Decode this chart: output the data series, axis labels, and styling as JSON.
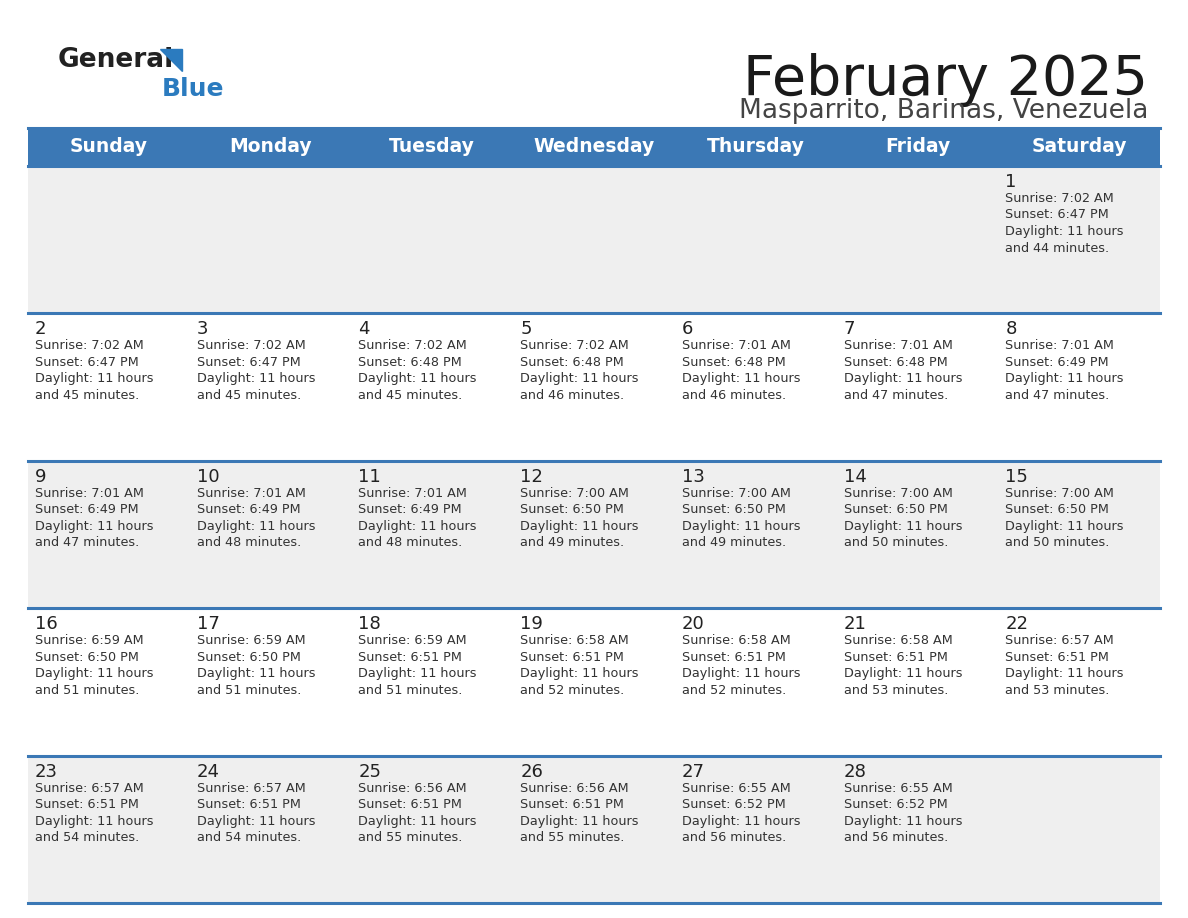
{
  "title": "February 2025",
  "subtitle": "Masparrito, Barinas, Venezuela",
  "days_of_week": [
    "Sunday",
    "Monday",
    "Tuesday",
    "Wednesday",
    "Thursday",
    "Friday",
    "Saturday"
  ],
  "header_bg": "#3b78b5",
  "header_text_color": "#ffffff",
  "row_bg_gray": "#efefef",
  "row_bg_white": "#ffffff",
  "separator_color": "#3b78b5",
  "text_color": "#333333",
  "day_number_color": "#333333",
  "calendar_data": [
    [
      null,
      null,
      null,
      null,
      null,
      null,
      {
        "day": 1,
        "sunrise": "7:02 AM",
        "sunset": "6:47 PM",
        "daylight_hours": 11,
        "daylight_minutes": 44
      }
    ],
    [
      {
        "day": 2,
        "sunrise": "7:02 AM",
        "sunset": "6:47 PM",
        "daylight_hours": 11,
        "daylight_minutes": 45
      },
      {
        "day": 3,
        "sunrise": "7:02 AM",
        "sunset": "6:47 PM",
        "daylight_hours": 11,
        "daylight_minutes": 45
      },
      {
        "day": 4,
        "sunrise": "7:02 AM",
        "sunset": "6:48 PM",
        "daylight_hours": 11,
        "daylight_minutes": 45
      },
      {
        "day": 5,
        "sunrise": "7:02 AM",
        "sunset": "6:48 PM",
        "daylight_hours": 11,
        "daylight_minutes": 46
      },
      {
        "day": 6,
        "sunrise": "7:01 AM",
        "sunset": "6:48 PM",
        "daylight_hours": 11,
        "daylight_minutes": 46
      },
      {
        "day": 7,
        "sunrise": "7:01 AM",
        "sunset": "6:48 PM",
        "daylight_hours": 11,
        "daylight_minutes": 47
      },
      {
        "day": 8,
        "sunrise": "7:01 AM",
        "sunset": "6:49 PM",
        "daylight_hours": 11,
        "daylight_minutes": 47
      }
    ],
    [
      {
        "day": 9,
        "sunrise": "7:01 AM",
        "sunset": "6:49 PM",
        "daylight_hours": 11,
        "daylight_minutes": 47
      },
      {
        "day": 10,
        "sunrise": "7:01 AM",
        "sunset": "6:49 PM",
        "daylight_hours": 11,
        "daylight_minutes": 48
      },
      {
        "day": 11,
        "sunrise": "7:01 AM",
        "sunset": "6:49 PM",
        "daylight_hours": 11,
        "daylight_minutes": 48
      },
      {
        "day": 12,
        "sunrise": "7:00 AM",
        "sunset": "6:50 PM",
        "daylight_hours": 11,
        "daylight_minutes": 49
      },
      {
        "day": 13,
        "sunrise": "7:00 AM",
        "sunset": "6:50 PM",
        "daylight_hours": 11,
        "daylight_minutes": 49
      },
      {
        "day": 14,
        "sunrise": "7:00 AM",
        "sunset": "6:50 PM",
        "daylight_hours": 11,
        "daylight_minutes": 50
      },
      {
        "day": 15,
        "sunrise": "7:00 AM",
        "sunset": "6:50 PM",
        "daylight_hours": 11,
        "daylight_minutes": 50
      }
    ],
    [
      {
        "day": 16,
        "sunrise": "6:59 AM",
        "sunset": "6:50 PM",
        "daylight_hours": 11,
        "daylight_minutes": 51
      },
      {
        "day": 17,
        "sunrise": "6:59 AM",
        "sunset": "6:50 PM",
        "daylight_hours": 11,
        "daylight_minutes": 51
      },
      {
        "day": 18,
        "sunrise": "6:59 AM",
        "sunset": "6:51 PM",
        "daylight_hours": 11,
        "daylight_minutes": 51
      },
      {
        "day": 19,
        "sunrise": "6:58 AM",
        "sunset": "6:51 PM",
        "daylight_hours": 11,
        "daylight_minutes": 52
      },
      {
        "day": 20,
        "sunrise": "6:58 AM",
        "sunset": "6:51 PM",
        "daylight_hours": 11,
        "daylight_minutes": 52
      },
      {
        "day": 21,
        "sunrise": "6:58 AM",
        "sunset": "6:51 PM",
        "daylight_hours": 11,
        "daylight_minutes": 53
      },
      {
        "day": 22,
        "sunrise": "6:57 AM",
        "sunset": "6:51 PM",
        "daylight_hours": 11,
        "daylight_minutes": 53
      }
    ],
    [
      {
        "day": 23,
        "sunrise": "6:57 AM",
        "sunset": "6:51 PM",
        "daylight_hours": 11,
        "daylight_minutes": 54
      },
      {
        "day": 24,
        "sunrise": "6:57 AM",
        "sunset": "6:51 PM",
        "daylight_hours": 11,
        "daylight_minutes": 54
      },
      {
        "day": 25,
        "sunrise": "6:56 AM",
        "sunset": "6:51 PM",
        "daylight_hours": 11,
        "daylight_minutes": 55
      },
      {
        "day": 26,
        "sunrise": "6:56 AM",
        "sunset": "6:51 PM",
        "daylight_hours": 11,
        "daylight_minutes": 55
      },
      {
        "day": 27,
        "sunrise": "6:55 AM",
        "sunset": "6:52 PM",
        "daylight_hours": 11,
        "daylight_minutes": 56
      },
      {
        "day": 28,
        "sunrise": "6:55 AM",
        "sunset": "6:52 PM",
        "daylight_hours": 11,
        "daylight_minutes": 56
      },
      null
    ]
  ]
}
